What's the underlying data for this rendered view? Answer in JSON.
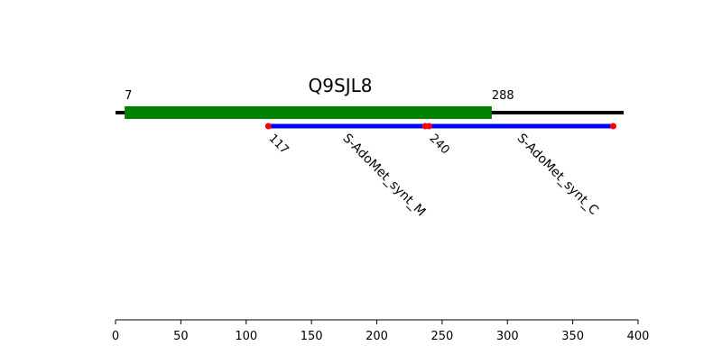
{
  "chart_data": {
    "type": "domain-map",
    "title": "Q9SJL8",
    "xlim": [
      0,
      400
    ],
    "x_ticks": [
      0,
      50,
      100,
      150,
      200,
      250,
      300,
      350,
      400
    ],
    "protein_length": 389,
    "grid": false,
    "legend": "none",
    "highlight_region": {
      "start": 7,
      "end": 288,
      "start_label": "7",
      "end_label": "288",
      "color": "#008000"
    },
    "domains": [
      {
        "name": "S-AdoMet_synt_M",
        "start": 117,
        "end": 237,
        "start_label": "117",
        "color": "#0000ff",
        "endpoint_color": "#ff0000"
      },
      {
        "name": "S-AdoMet_synt_C",
        "start": 240,
        "end": 381,
        "start_label": "240",
        "color": "#0000ff",
        "endpoint_color": "#ff0000"
      }
    ],
    "backbone_color": "#000000"
  }
}
